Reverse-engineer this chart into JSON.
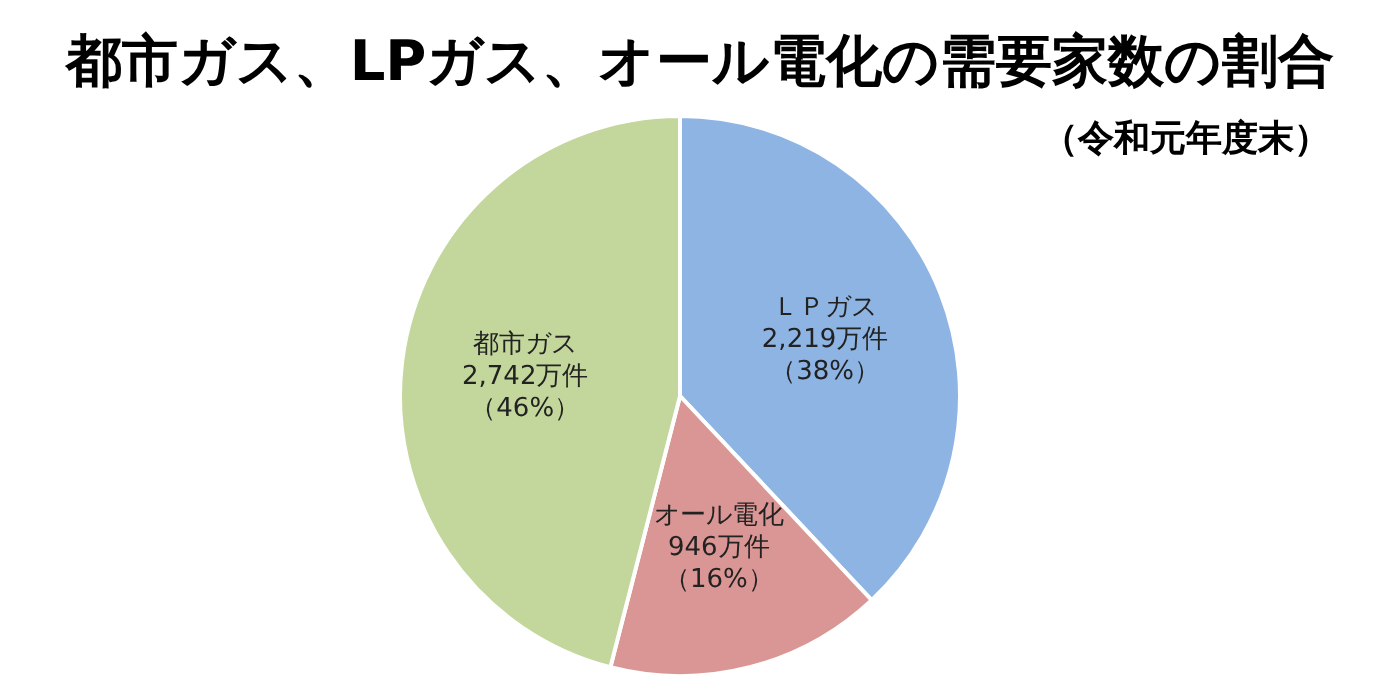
{
  "chart_data": {
    "type": "pie",
    "title": "都市ガス、LPガス、オール電化の需要家数の割合",
    "subtitle": "（令和元年度末）",
    "categories": [
      "ＬＰガス",
      "オール電化",
      "都市ガス"
    ],
    "values": [
      38,
      16,
      46
    ],
    "colors": [
      "#8eb4e3",
      "#d99694",
      "#c3d69b"
    ],
    "value_labels": [
      [
        "2,219万件",
        "（38%）"
      ],
      [
        "946万件",
        "（16%）"
      ],
      [
        "2,742万件",
        "（46%）"
      ]
    ]
  }
}
